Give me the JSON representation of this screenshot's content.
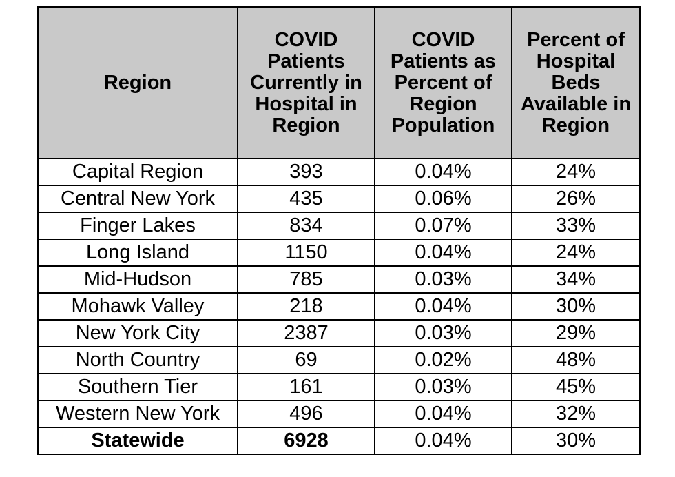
{
  "table": {
    "headers": [
      "Region",
      "COVID Patients Currently in Hospital in Region",
      "COVID Patients as Percent of Region Population",
      "Percent of Hospital Beds Available in Region"
    ],
    "rows": [
      [
        "Capital Region",
        "393",
        "0.04%",
        "24%"
      ],
      [
        "Central New York",
        "435",
        "0.06%",
        "26%"
      ],
      [
        "Finger Lakes",
        "834",
        "0.07%",
        "33%"
      ],
      [
        "Long Island",
        "1150",
        "0.04%",
        "24%"
      ],
      [
        "Mid-Hudson",
        "785",
        "0.03%",
        "34%"
      ],
      [
        "Mohawk Valley",
        "218",
        "0.04%",
        "30%"
      ],
      [
        "New York City",
        "2387",
        "0.03%",
        "29%"
      ],
      [
        "North Country",
        "69",
        "0.02%",
        "48%"
      ],
      [
        "Southern Tier",
        "161",
        "0.03%",
        "45%"
      ],
      [
        "Western New York",
        "496",
        "0.04%",
        "32%"
      ]
    ],
    "total": [
      "Statewide",
      "6928",
      "0.04%",
      "30%"
    ]
  }
}
